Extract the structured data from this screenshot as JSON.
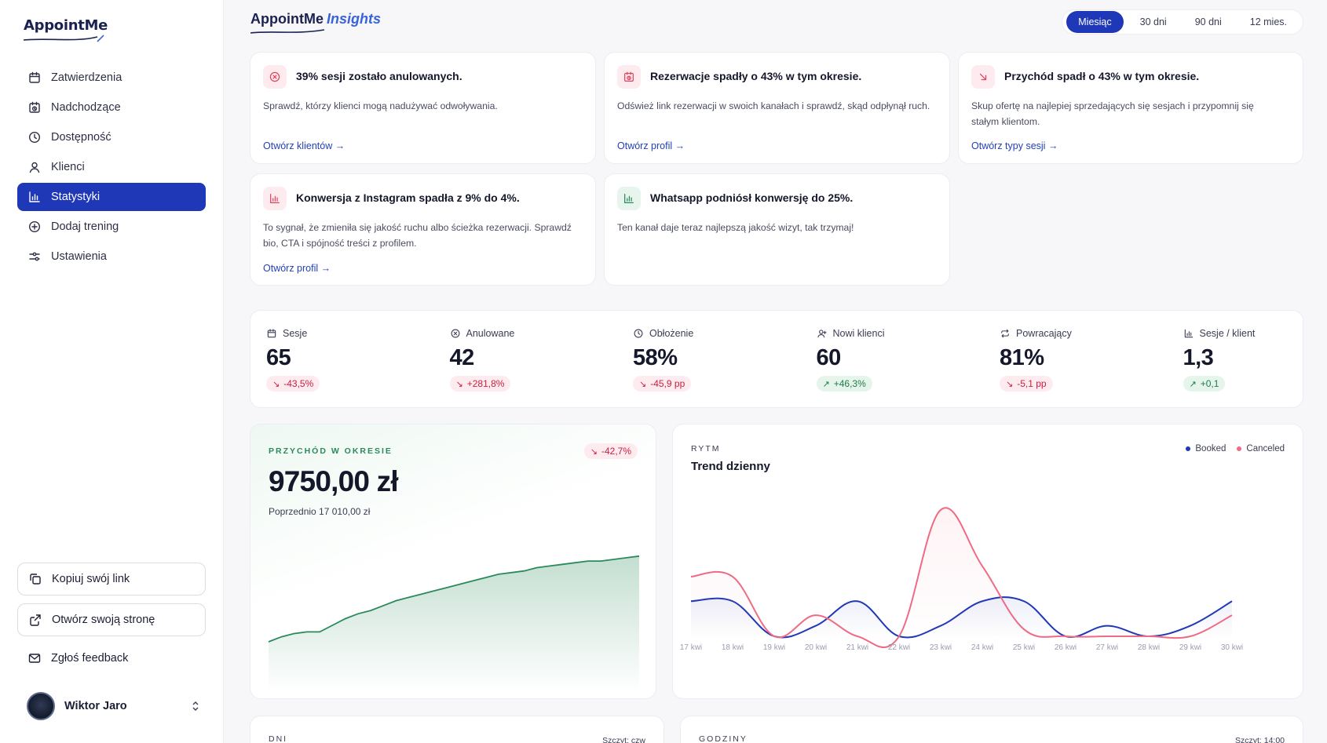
{
  "sidebar": {
    "logo": "AppointMe",
    "nav": [
      {
        "label": "Zatwierdzenia",
        "icon": "calendar-icon",
        "active": false
      },
      {
        "label": "Nadchodzące",
        "icon": "calendar-clock-icon",
        "active": false
      },
      {
        "label": "Dostępność",
        "icon": "clock-icon",
        "active": false
      },
      {
        "label": "Klienci",
        "icon": "user-icon",
        "active": false
      },
      {
        "label": "Statystyki",
        "icon": "bar-chart-icon",
        "active": true
      },
      {
        "label": "Dodaj trening",
        "icon": "plus-circle-icon",
        "active": false
      },
      {
        "label": "Ustawienia",
        "icon": "sliders-icon",
        "active": false
      }
    ],
    "copy_link": "Kopiuj swój link",
    "open_page": "Otwórz swoją stronę",
    "feedback": "Zgłoś feedback",
    "user_name": "Wiktor Jaro"
  },
  "header": {
    "brand": "AppointMe",
    "brand_suffix": "Insights",
    "ranges": [
      "Miesiąc",
      "30 dni",
      "90 dni",
      "12 mies."
    ],
    "active_range": "Miesiąc"
  },
  "alerts": [
    {
      "title": "39% sesji zostało anulowanych.",
      "desc": "Sprawdź, którzy klienci mogą nadużywać odwoływania.",
      "link": "Otwórz klientów",
      "icon": "x-circle-icon",
      "tone": "red"
    },
    {
      "title": "Rezerwacje spadły o 43% w tym okresie.",
      "desc": "Odśwież link rezerwacji w swoich kanałach i sprawdź, skąd odpłynął ruch.",
      "link": "Otwórz profil",
      "icon": "calendar-clock-icon",
      "tone": "red"
    },
    {
      "title": "Przychód spadł o 43% w tym okresie.",
      "desc": "Skup ofertę na najlepiej sprzedających się sesjach i przypomnij się stałym klientom.",
      "link": "Otwórz typy sesji",
      "icon": "arrow-down-right-icon",
      "tone": "red"
    },
    {
      "title": "Konwersja z Instagram spadła z 9% do 4%.",
      "desc": "To sygnał, że zmieniła się jakość ruchu albo ścieżka rezerwacji. Sprawdź bio, CTA i spójność treści z profilem.",
      "link": "Otwórz profil",
      "icon": "bar-chart-icon",
      "tone": "red"
    },
    {
      "title": "Whatsapp podniósł konwersję do 25%.",
      "desc": "Ten kanał daje teraz najlepszą jakość wizyt, tak trzymaj!",
      "link": "",
      "icon": "bar-chart-icon",
      "tone": "green"
    }
  ],
  "kpis": [
    {
      "label": "Sesje",
      "value": "65",
      "delta": "-43,5%",
      "dir": "down",
      "icon": "calendar-icon"
    },
    {
      "label": "Anulowane",
      "value": "42",
      "delta": "+281,8%",
      "dir": "down",
      "icon": "x-circle-icon"
    },
    {
      "label": "Obłożenie",
      "value": "58%",
      "delta": "-45,9 pp",
      "dir": "down",
      "icon": "clock-icon"
    },
    {
      "label": "Nowi klienci",
      "value": "60",
      "delta": "+46,3%",
      "dir": "up",
      "icon": "user-plus-icon"
    },
    {
      "label": "Powracający",
      "value": "81%",
      "delta": "-5,1 pp",
      "dir": "down",
      "icon": "repeat-icon"
    },
    {
      "label": "Sesje / klient",
      "value": "1,3",
      "delta": "+0,1",
      "dir": "up",
      "icon": "bar-chart-icon"
    }
  ],
  "revenue": {
    "label": "PRZYCHÓD W OKRESIE",
    "delta": "-42,7%",
    "value": "9750,00 zł",
    "previous": "Poprzednio 17 010,00 zł"
  },
  "trend": {
    "label": "RYTM",
    "title": "Trend dzienny",
    "legend": [
      "Booked",
      "Canceled"
    ]
  },
  "bottom": {
    "days_label": "DNI",
    "days_meta": "Szczyt: czw",
    "hours_label": "GODZINY",
    "hours_meta": "Szczyt: 14:00"
  },
  "colors": {
    "primary": "#1f38b8",
    "booked": "#1f38b8",
    "canceled": "#ef6b85",
    "revenue_line": "#2b8a5a"
  },
  "chart_data": [
    {
      "type": "area",
      "title": "",
      "series": [
        {
          "values": [
            30,
            33,
            35,
            36,
            36,
            40,
            44,
            47,
            49,
            52,
            55,
            57,
            59,
            61,
            63,
            65,
            67,
            69,
            71,
            72,
            73,
            75,
            76,
            77,
            78,
            79,
            79,
            80,
            81,
            82
          ]
        }
      ],
      "ylim": [
        0,
        100
      ],
      "xlabel": "",
      "ylabel": ""
    },
    {
      "type": "line",
      "title": "Trend dzienny",
      "categories": [
        "17 kwi",
        "18 kwi",
        "19 kwi",
        "20 kwi",
        "21 kwi",
        "22 kwi",
        "23 kwi",
        "24 kwi",
        "25 kwi",
        "26 kwi",
        "27 kwi",
        "28 kwi",
        "29 kwi",
        "30 kwi"
      ],
      "series": [
        {
          "name": "Booked",
          "values": [
            1,
            1,
            0,
            0.3,
            1,
            0,
            0.3,
            1,
            1,
            0,
            0.3,
            0,
            0.3,
            1
          ]
        },
        {
          "name": "Canceled",
          "values": [
            1.7,
            1.7,
            0,
            0.6,
            0,
            0,
            3.6,
            2,
            0.2,
            0,
            0,
            0,
            0,
            0.6
          ]
        }
      ],
      "ylim": [
        0,
        3.8
      ],
      "legend": "top-right",
      "xlabel": "",
      "ylabel": ""
    }
  ]
}
